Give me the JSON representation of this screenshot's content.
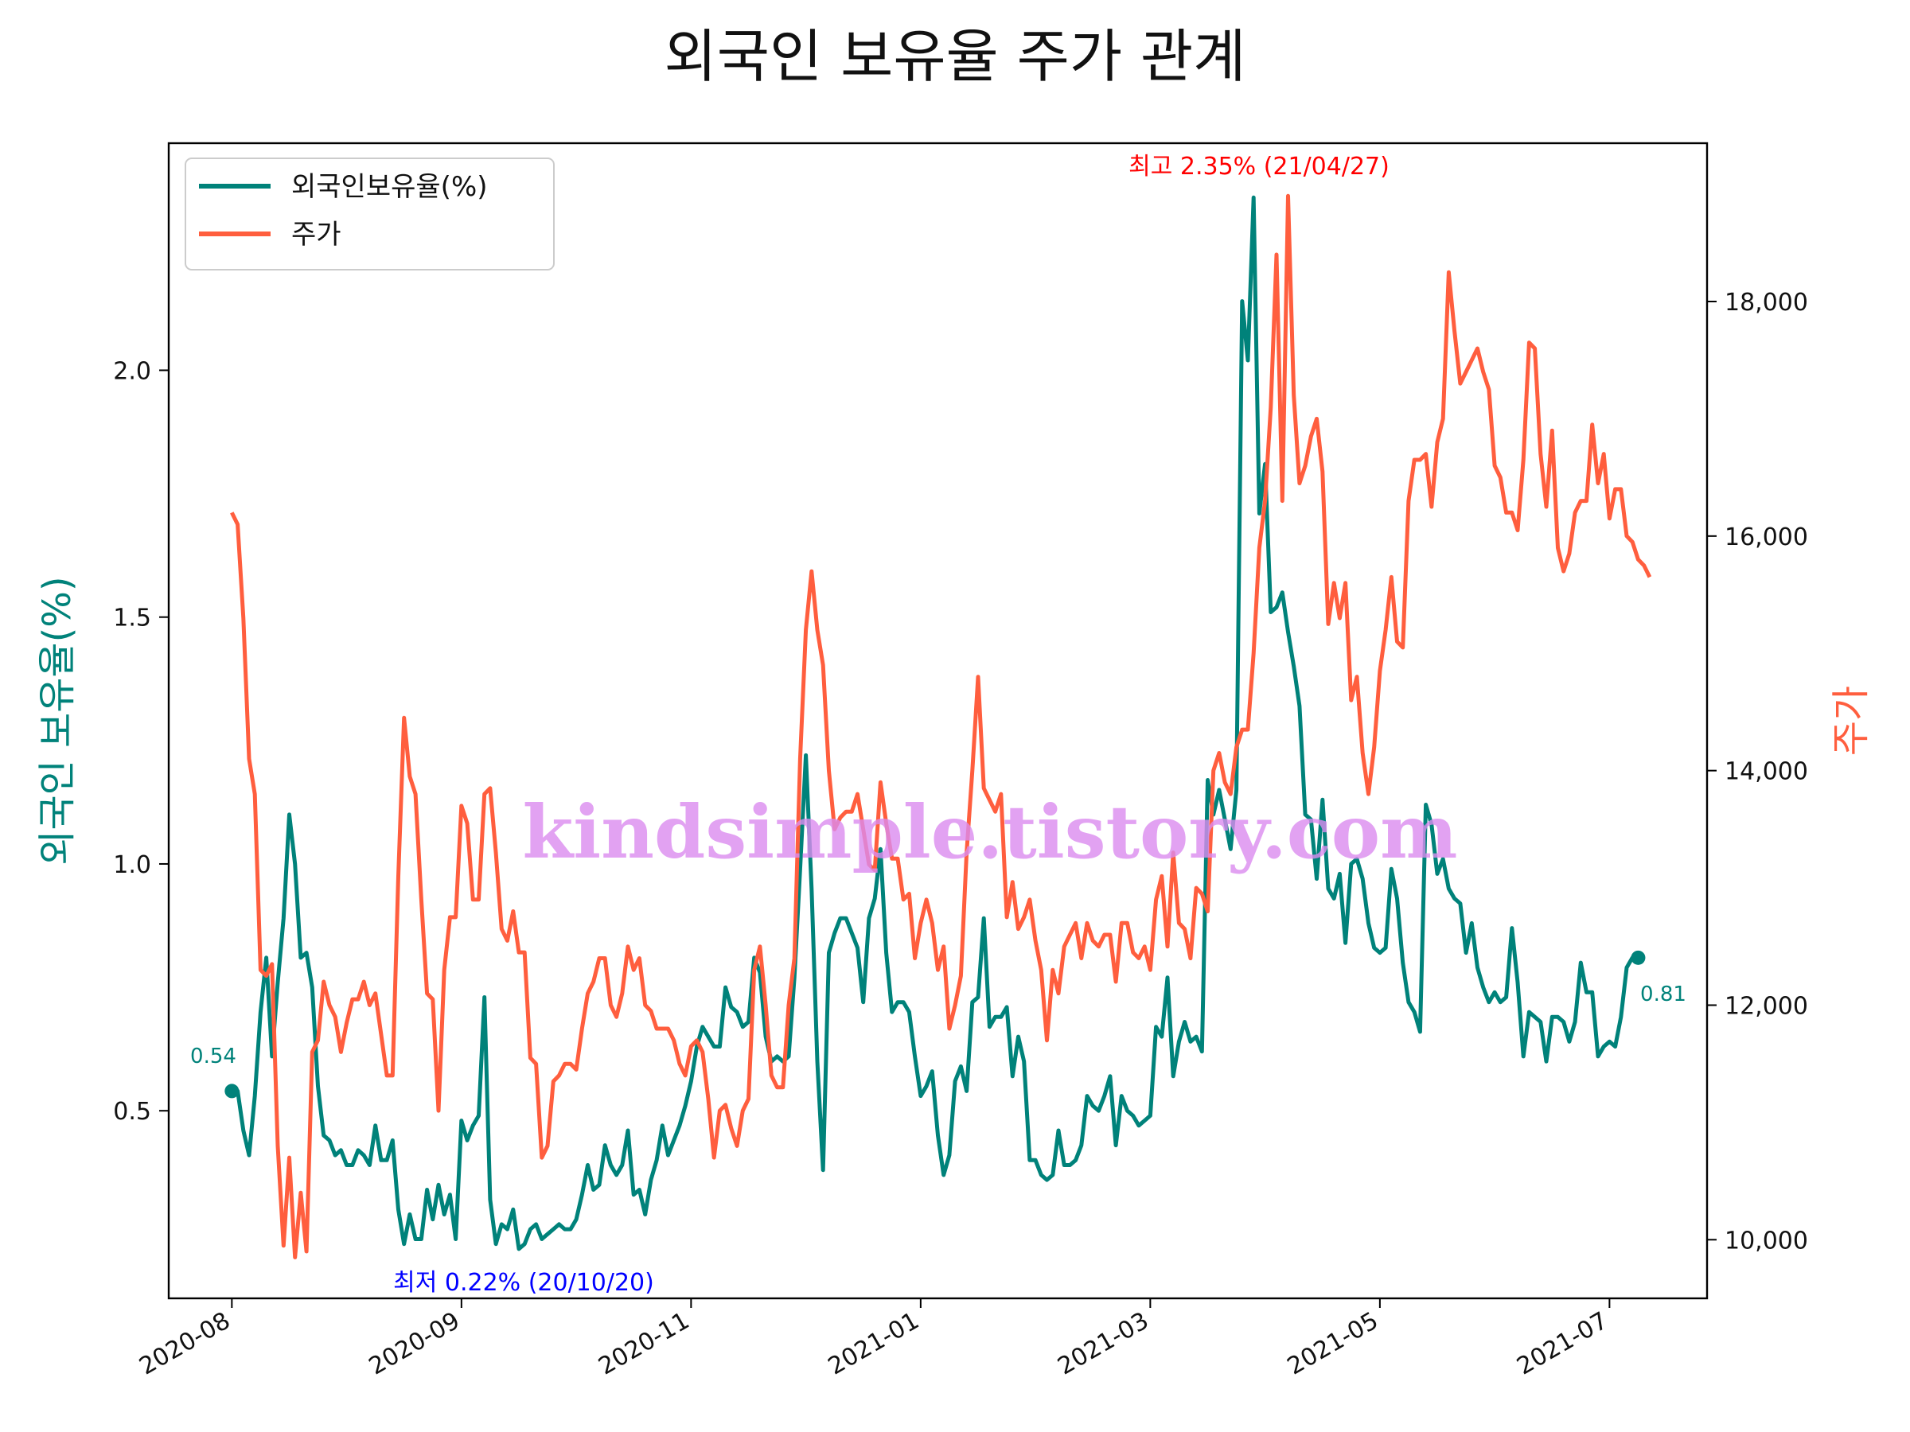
{
  "title": "외국인 보유율 주가 관계",
  "watermark": "kindsimple.tistory.com",
  "colors": {
    "foreign": "#00827a",
    "price": "#ff5e3e",
    "max": "#ff0000",
    "min": "#0000ff"
  },
  "legend": {
    "foreign": "외국인보유율(%)",
    "price": "주가",
    "placement": "upper-left"
  },
  "annotations": {
    "max": "최고 2.35% (21/04/27)",
    "min": "최저 0.22% (20/10/20)",
    "start": "0.54",
    "end": "0.81"
  },
  "chart_data": {
    "type": "line",
    "title": "외국인 보유율 주가 관계",
    "ylabel": "외국인 보유율(%)",
    "y2label": "주가",
    "ylim": [
      0.12,
      2.46
    ],
    "y2lim": [
      9500,
      19350
    ],
    "xlim": [
      -11,
      257
    ],
    "x_ticks": [
      {
        "i": 0,
        "label": "2020-08"
      },
      {
        "i": 40,
        "label": "2020-09"
      },
      {
        "i": 80,
        "label": "2020-11"
      },
      {
        "i": 120,
        "label": "2021-01"
      },
      {
        "i": 160,
        "label": "2021-03"
      },
      {
        "i": 200,
        "label": "2021-05"
      },
      {
        "i": 240,
        "label": "2021-07"
      }
    ],
    "y_ticks": [
      "0.5",
      "1.0",
      "1.5",
      "2.0"
    ],
    "y2_ticks": [
      "10,000",
      "12,000",
      "14,000",
      "16,000",
      "18,000"
    ],
    "series": [
      {
        "name": "외국인보유율(%)",
        "axis": "left",
        "values": [
          0.54,
          0.54,
          0.46,
          0.41,
          0.53,
          0.7,
          0.81,
          0.61,
          0.76,
          0.89,
          1.1,
          1.0,
          0.81,
          0.82,
          0.75,
          0.55,
          0.45,
          0.44,
          0.41,
          0.42,
          0.39,
          0.39,
          0.42,
          0.41,
          0.39,
          0.47,
          0.4,
          0.4,
          0.44,
          0.3,
          0.23,
          0.29,
          0.24,
          0.24,
          0.34,
          0.28,
          0.35,
          0.29,
          0.33,
          0.24,
          0.48,
          0.44,
          0.47,
          0.49,
          0.73,
          0.32,
          0.23,
          0.27,
          0.26,
          0.3,
          0.22,
          0.23,
          0.26,
          0.27,
          0.24,
          0.25,
          0.26,
          0.27,
          0.26,
          0.26,
          0.28,
          0.33,
          0.39,
          0.34,
          0.35,
          0.43,
          0.39,
          0.37,
          0.39,
          0.46,
          0.33,
          0.34,
          0.29,
          0.36,
          0.4,
          0.47,
          0.41,
          0.44,
          0.47,
          0.51,
          0.56,
          0.63,
          0.67,
          0.65,
          0.63,
          0.63,
          0.75,
          0.71,
          0.7,
          0.67,
          0.68,
          0.81,
          0.78,
          0.65,
          0.6,
          0.61,
          0.6,
          0.61,
          0.77,
          0.99,
          1.22,
          0.95,
          0.6,
          0.38,
          0.82,
          0.86,
          0.89,
          0.89,
          0.86,
          0.83,
          0.72,
          0.89,
          0.93,
          1.03,
          0.82,
          0.7,
          0.72,
          0.72,
          0.7,
          0.61,
          0.53,
          0.55,
          0.58,
          0.45,
          0.37,
          0.41,
          0.56,
          0.59,
          0.54,
          0.72,
          0.73,
          0.89,
          0.67,
          0.69,
          0.69,
          0.71,
          0.57,
          0.65,
          0.6,
          0.4,
          0.4,
          0.37,
          0.36,
          0.37,
          0.46,
          0.39,
          0.39,
          0.4,
          0.43,
          0.53,
          0.51,
          0.5,
          0.53,
          0.57,
          0.43,
          0.53,
          0.5,
          0.49,
          0.47,
          0.48,
          0.49,
          0.67,
          0.65,
          0.77,
          0.57,
          0.64,
          0.68,
          0.64,
          0.65,
          0.62,
          1.17,
          1.1,
          1.15,
          1.09,
          1.03,
          1.15,
          2.14,
          2.02,
          2.35,
          1.71,
          1.81,
          1.51,
          1.52,
          1.55,
          1.47,
          1.4,
          1.32,
          1.1,
          1.09,
          0.97,
          1.13,
          0.95,
          0.93,
          0.98,
          0.84,
          1.0,
          1.01,
          0.97,
          0.88,
          0.83,
          0.82,
          0.83,
          0.99,
          0.93,
          0.8,
          0.72,
          0.7,
          0.66,
          1.12,
          1.08,
          0.98,
          1.01,
          0.95,
          0.93,
          0.92,
          0.82,
          0.88,
          0.79,
          0.75,
          0.72,
          0.74,
          0.72,
          0.73,
          0.87,
          0.76,
          0.61,
          0.7,
          0.69,
          0.68,
          0.6,
          0.69,
          0.69,
          0.68,
          0.64,
          0.68,
          0.8,
          0.74,
          0.74,
          0.61,
          0.63,
          0.64,
          0.63,
          0.69,
          0.79,
          0.81,
          0.81
        ]
      },
      {
        "name": "주가",
        "axis": "right",
        "values": [
          16200,
          16100,
          15300,
          14100,
          13800,
          12300,
          12250,
          12350,
          10800,
          9950,
          10700,
          9850,
          10400,
          9900,
          11600,
          11700,
          12200,
          12000,
          11900,
          11600,
          11850,
          12050,
          12050,
          12200,
          12000,
          12100,
          11750,
          11400,
          11400,
          13100,
          14450,
          13950,
          13800,
          12900,
          12100,
          12050,
          11100,
          12300,
          12750,
          12750,
          13700,
          13550,
          12900,
          12900,
          13800,
          13850,
          13300,
          12650,
          12550,
          12800,
          12450,
          12450,
          11550,
          11500,
          10700,
          10800,
          11350,
          11400,
          11500,
          11500,
          11450,
          11800,
          12100,
          12200,
          12400,
          12400,
          12000,
          11900,
          12100,
          12500,
          12300,
          12400,
          12000,
          11950,
          11800,
          11800,
          11800,
          11700,
          11500,
          11400,
          11650,
          11700,
          11600,
          11200,
          10700,
          11100,
          11150,
          10950,
          10800,
          11100,
          11200,
          12300,
          12500,
          12000,
          11400,
          11300,
          11300,
          12000,
          12400,
          14100,
          15200,
          15700,
          15200,
          14900,
          14000,
          13500,
          13600,
          13650,
          13650,
          13800,
          13500,
          13200,
          13150,
          13900,
          13550,
          13250,
          13250,
          12900,
          12950,
          12400,
          12700,
          12900,
          12700,
          12300,
          12500,
          11800,
          12000,
          12250,
          13300,
          14000,
          14800,
          13850,
          13750,
          13650,
          13800,
          12750,
          13050,
          12650,
          12750,
          12900,
          12550,
          12300,
          11700,
          12300,
          12100,
          12500,
          12600,
          12700,
          12400,
          12700,
          12550,
          12500,
          12600,
          12600,
          12200,
          12700,
          12700,
          12450,
          12400,
          12500,
          12300,
          12900,
          13100,
          12500,
          13300,
          12700,
          12650,
          12400,
          13000,
          12950,
          12800,
          14000,
          14150,
          13900,
          13800,
          14200,
          14350,
          14350,
          15000,
          15900,
          16300,
          17100,
          18400,
          16300,
          18900,
          17200,
          16450,
          16600,
          16850,
          17000,
          16550,
          15250,
          15600,
          15300,
          15600,
          14600,
          14800,
          14150,
          13800,
          14200,
          14850,
          15200,
          15650,
          15100,
          15050,
          16300,
          16650,
          16650,
          16700,
          16250,
          16800,
          17000,
          18250,
          17750,
          17300,
          17400,
          17500,
          17600,
          17400,
          17250,
          16600,
          16500,
          16200,
          16200,
          16050,
          16650,
          17650,
          17600,
          16700,
          16250,
          16900,
          15900,
          15700,
          15850,
          16200,
          16300,
          16300,
          16950,
          16450,
          16700,
          16150,
          16400,
          16400,
          16000,
          15950,
          15800,
          15750,
          15650
        ]
      }
    ],
    "grid": false,
    "legend_placement": "upper-left"
  }
}
